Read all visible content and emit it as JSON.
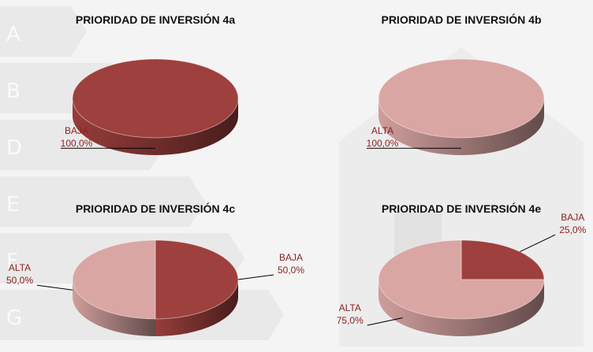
{
  "chart_data": [
    {
      "type": "pie",
      "title": "PRIORIDAD DE INVERSIÓN 4a",
      "categories": [
        "BAJA"
      ],
      "values": [
        100
      ],
      "value_labels": [
        "100,0%"
      ],
      "colors": [
        "#9e403d"
      ]
    },
    {
      "type": "pie",
      "title": "PRIORIDAD DE INVERSIÓN 4b",
      "categories": [
        "ALTA"
      ],
      "values": [
        100
      ],
      "value_labels": [
        "100,0%"
      ],
      "colors": [
        "#daa6a4"
      ]
    },
    {
      "type": "pie",
      "title": "PRIORIDAD DE INVERSIÓN 4c",
      "categories": [
        "BAJA",
        "ALTA"
      ],
      "values": [
        50,
        50
      ],
      "value_labels": [
        "50,0%",
        "50,0%"
      ],
      "colors": [
        "#9e403d",
        "#daa6a4"
      ]
    },
    {
      "type": "pie",
      "title": "PRIORIDAD DE INVERSIÓN 4e",
      "categories": [
        "BAJA",
        "ALTA"
      ],
      "values": [
        25,
        75
      ],
      "value_labels": [
        "25,0%",
        "75,0%"
      ],
      "colors": [
        "#9e403d",
        "#daa6a4"
      ]
    }
  ]
}
